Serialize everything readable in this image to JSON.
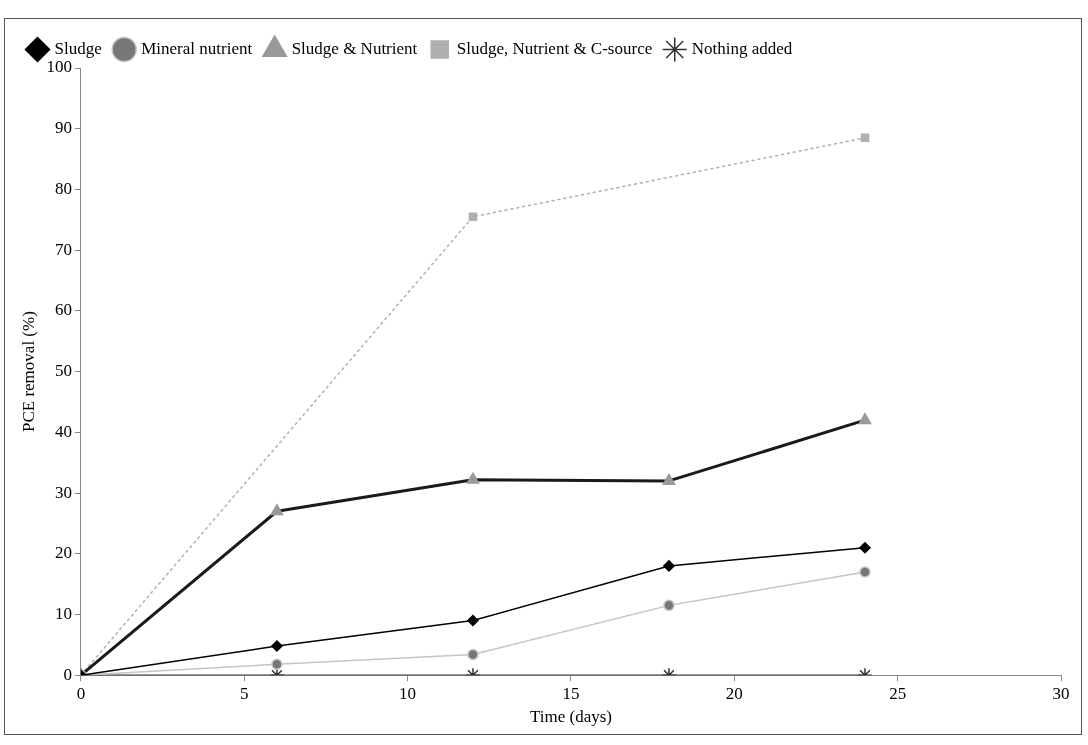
{
  "chart_data": {
    "type": "line",
    "xlabel": "Time (days)",
    "ylabel": "PCE removal (%)",
    "xlim": [
      0,
      30
    ],
    "xticks": [
      0,
      5,
      10,
      15,
      20,
      25,
      30
    ],
    "ylim": [
      0,
      100
    ],
    "yticks": [
      0,
      10,
      20,
      30,
      40,
      50,
      60,
      70,
      80,
      90,
      100
    ],
    "grid": false,
    "legend": "top",
    "series": [
      {
        "name": "Sludge",
        "color": "#000000",
        "marker": "diamond",
        "line_style": "solid",
        "x": [
          0,
          6,
          12,
          18,
          24
        ],
        "values": [
          0,
          4.8,
          9,
          18,
          21
        ]
      },
      {
        "name": "Mineral nutrient",
        "color": "#c4c4c4",
        "marker": "circle",
        "line_style": "solid",
        "x": [
          0,
          6,
          12,
          18,
          24
        ],
        "values": [
          0,
          1.8,
          3.4,
          11.5,
          17
        ]
      },
      {
        "name": "Sludge & Nutrient",
        "color": "#1a1a1a",
        "marker": "triangle",
        "line_style": "solid",
        "x": [
          0,
          6,
          12,
          18,
          24
        ],
        "values": [
          0,
          27,
          32.2,
          32,
          42
        ]
      },
      {
        "name": "Sludge, Nutrient & C-source",
        "color": "#b0b0b0",
        "marker": "square",
        "line_style": "dotted",
        "x": [
          0,
          12,
          24
        ],
        "values": [
          0,
          75.5,
          88.5
        ]
      },
      {
        "name": "Nothing added",
        "color": "#333333",
        "marker": "cross",
        "line_style": "solid",
        "x": [
          0,
          6,
          12,
          18,
          24
        ],
        "values": [
          0,
          0,
          0,
          0,
          0
        ]
      }
    ]
  }
}
